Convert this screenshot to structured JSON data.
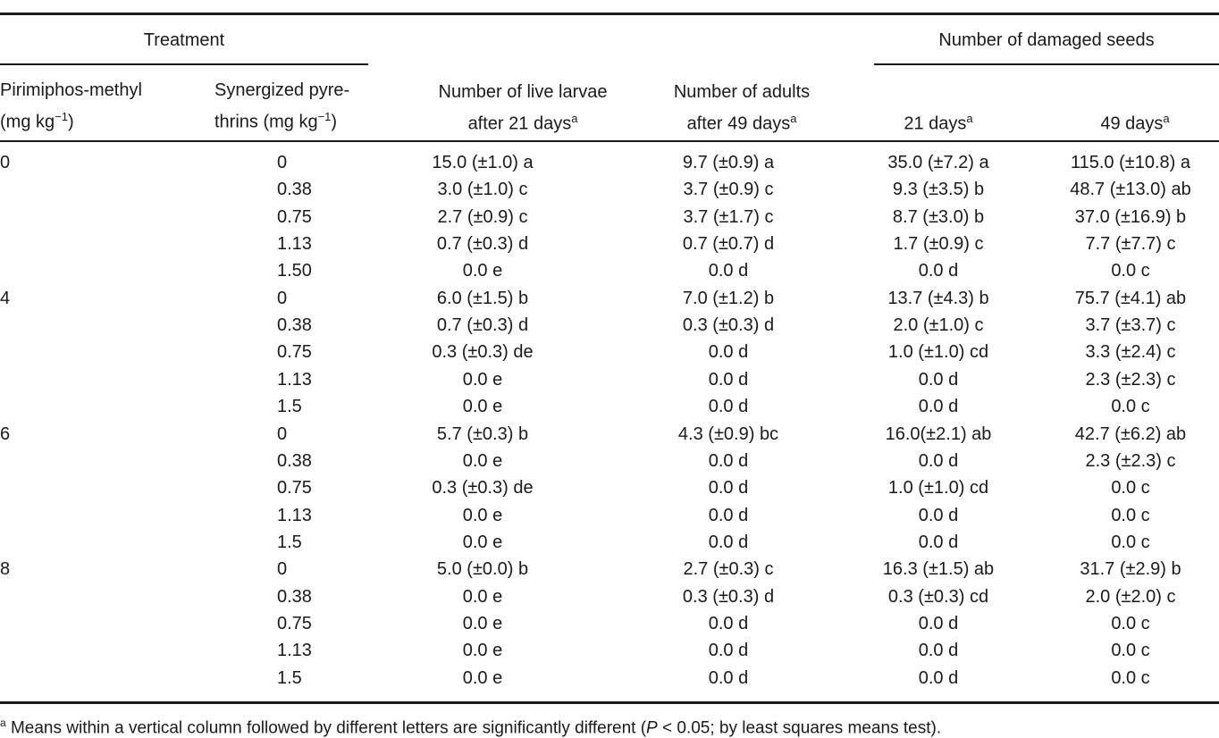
{
  "header": {
    "treatment": "Treatment",
    "damaged_group": "Number of damaged seeds",
    "pm_line1": "Pirimiphos-methyl",
    "pm_line2": "(mg kg",
    "pm_exp": "−1",
    "pm_close": ")",
    "sp_line1": "Synergized pyre-",
    "sp_line2": "thrins (mg kg",
    "sp_exp": "−1",
    "sp_close": ")",
    "larvae_line1": "Number of live larvae",
    "larvae_line2": "after 21 days",
    "adults_line1": "Number of adults",
    "adults_line2": "after 49 days",
    "d21": "21 days",
    "d49": "49 days",
    "footmark": "a"
  },
  "rows": [
    {
      "pm": "0",
      "sp": "0",
      "larvae": "15.0 (±1.0) a",
      "adults": "9.7 (±0.9) a",
      "d21": "35.0 (±7.2) a",
      "d49": "115.0 (±10.8) a"
    },
    {
      "pm": "",
      "sp": "0.38",
      "larvae": "3.0 (±1.0) c",
      "adults": "3.7 (±0.9) c",
      "d21": "9.3 (±3.5) b",
      "d49": "48.7 (±13.0) ab"
    },
    {
      "pm": "",
      "sp": "0.75",
      "larvae": "2.7 (±0.9) c",
      "adults": "3.7 (±1.7) c",
      "d21": "8.7 (±3.0) b",
      "d49": "37.0 (±16.9) b"
    },
    {
      "pm": "",
      "sp": "1.13",
      "larvae": "0.7 (±0.3) d",
      "adults": "0.7 (±0.7) d",
      "d21": "1.7 (±0.9) c",
      "d49": "7.7 (±7.7) c"
    },
    {
      "pm": "",
      "sp": "1.50",
      "larvae": "0.0 e",
      "adults": "0.0 d",
      "d21": "0.0 d",
      "d49": "0.0 c"
    },
    {
      "pm": "4",
      "sp": "0",
      "larvae": "6.0 (±1.5) b",
      "adults": "7.0 (±1.2) b",
      "d21": "13.7 (±4.3) b",
      "d49": "75.7 (±4.1) ab"
    },
    {
      "pm": "",
      "sp": "0.38",
      "larvae": "0.7 (±0.3) d",
      "adults": "0.3 (±0.3) d",
      "d21": "2.0 (±1.0) c",
      "d49": "3.7 (±3.7) c"
    },
    {
      "pm": "",
      "sp": "0.75",
      "larvae": "0.3 (±0.3) de",
      "adults": "0.0 d",
      "d21": "1.0 (±1.0) cd",
      "d49": "3.3 (±2.4) c"
    },
    {
      "pm": "",
      "sp": "1.13",
      "larvae": "0.0 e",
      "adults": "0.0 d",
      "d21": "0.0 d",
      "d49": "2.3 (±2.3) c"
    },
    {
      "pm": "",
      "sp": "1.5",
      "larvae": "0.0 e",
      "adults": "0.0 d",
      "d21": "0.0 d",
      "d49": "0.0 c"
    },
    {
      "pm": "6",
      "sp": "0",
      "larvae": "5.7 (±0.3) b",
      "adults": "4.3 (±0.9) bc",
      "d21": "16.0(±2.1) ab",
      "d49": "42.7 (±6.2) ab"
    },
    {
      "pm": "",
      "sp": "0.38",
      "larvae": "0.0 e",
      "adults": "0.0 d",
      "d21": "0.0 d",
      "d49": "2.3 (±2.3) c"
    },
    {
      "pm": "",
      "sp": "0.75",
      "larvae": "0.3 (±0.3) de",
      "adults": "0.0 d",
      "d21": "1.0 (±1.0) cd",
      "d49": "0.0 c"
    },
    {
      "pm": "",
      "sp": "1.13",
      "larvae": "0.0 e",
      "adults": "0.0 d",
      "d21": "0.0 d",
      "d49": "0.0 c"
    },
    {
      "pm": "",
      "sp": "1.5",
      "larvae": "0.0 e",
      "adults": "0.0 d",
      "d21": "0.0 d",
      "d49": "0.0 c"
    },
    {
      "pm": "8",
      "sp": "0",
      "larvae": "5.0 (±0.0) b",
      "adults": "2.7 (±0.3) c",
      "d21": "16.3 (±1.5) ab",
      "d49": "31.7 (±2.9) b"
    },
    {
      "pm": "",
      "sp": "0.38",
      "larvae": "0.0 e",
      "adults": "0.3 (±0.3) d",
      "d21": "0.3 (±0.3) cd",
      "d49": "2.0 (±2.0) c"
    },
    {
      "pm": "",
      "sp": "0.75",
      "larvae": "0.0 e",
      "adults": "0.0 d",
      "d21": "0.0 d",
      "d49": "0.0 c"
    },
    {
      "pm": "",
      "sp": "1.13",
      "larvae": "0.0 e",
      "adults": "0.0 d",
      "d21": "0.0 d",
      "d49": "0.0 c"
    },
    {
      "pm": "",
      "sp": "1.5",
      "larvae": "0.0 e",
      "adults": "0.0 d",
      "d21": "0.0 d",
      "d49": "0.0 c"
    }
  ],
  "footnote": {
    "mark": "a",
    "text_before_p": " Means within a vertical column followed by different letters are significantly different (",
    "p_symbol": "P",
    "text_after_p": " < 0.05; by least squares means test)."
  }
}
